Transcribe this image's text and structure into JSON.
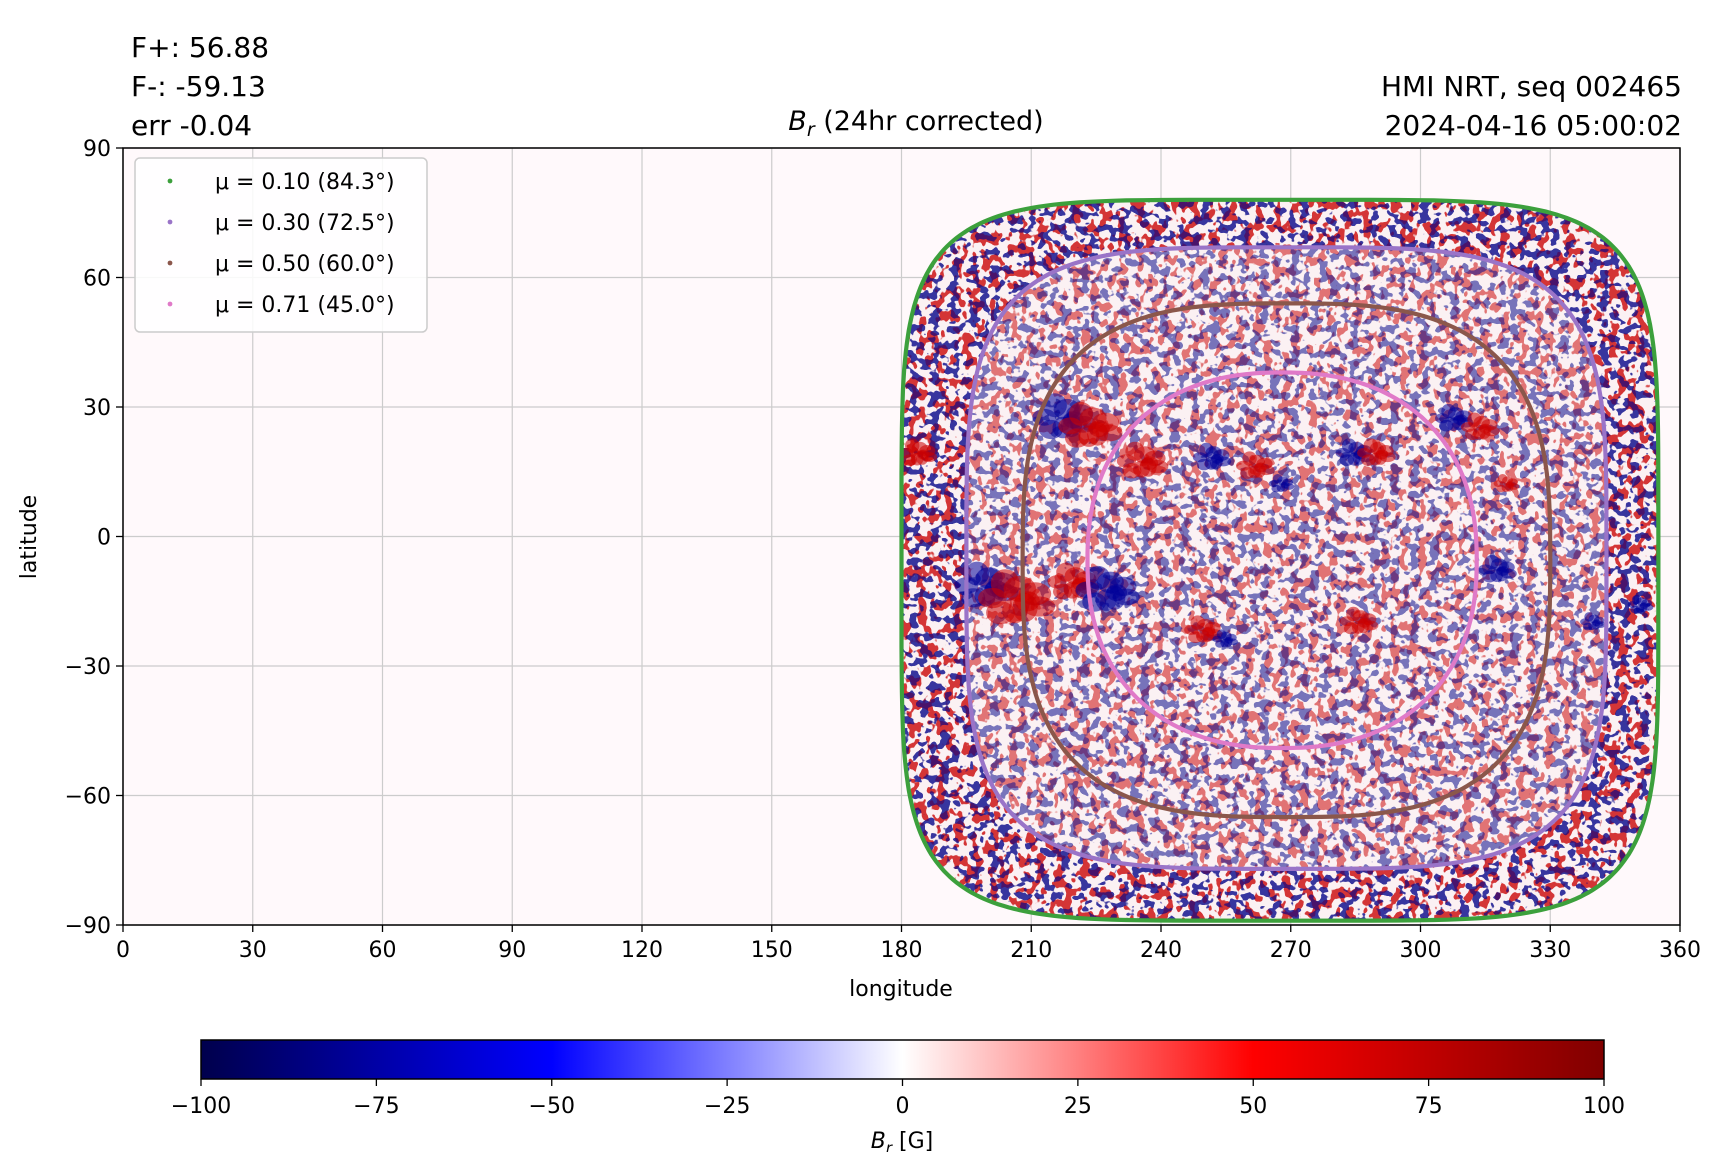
{
  "stats": {
    "f_plus": "F+: 56.88",
    "f_minus": "F-: -59.13",
    "err": "err -0.04"
  },
  "info": {
    "source": "HMI NRT, seq 002465",
    "timestamp": "2024-04-16 05:00:02"
  },
  "colors": {
    "mu010": "#3ca03c",
    "mu030": "#9a74c8",
    "mu050": "#8b574b",
    "mu071": "#e07ac8",
    "positive": "#cc0000",
    "negative": "#000099",
    "grid": "#cccccc"
  },
  "chart_data": [
    {
      "type": "heatmap",
      "title": {
        "symbol": "B",
        "sub": "r",
        "rest": " (24hr corrected)"
      },
      "xlabel": "longitude",
      "ylabel": "latitude",
      "xlim": [
        0,
        360
      ],
      "ylim": [
        -90,
        90
      ],
      "xticks": [
        0,
        30,
        60,
        90,
        120,
        150,
        180,
        210,
        240,
        270,
        300,
        330,
        360
      ],
      "yticks": [
        -90,
        -60,
        -30,
        0,
        30,
        60,
        90
      ],
      "grid": true,
      "legend": "top-left",
      "disk_center": {
        "lon": 268,
        "lat": -6
      },
      "series": [
        {
          "name": "μ = 0.10 (84.3°)",
          "mu": 0.1,
          "color": "#3ca03c",
          "lon_range": [
            180,
            355
          ],
          "lat_range": [
            -89,
            78
          ]
        },
        {
          "name": "μ = 0.30 (72.5°)",
          "mu": 0.3,
          "color": "#9a74c8",
          "lon_range": [
            195,
            343
          ],
          "lat_range": [
            -77,
            67
          ]
        },
        {
          "name": "μ = 0.50 (60.0°)",
          "mu": 0.5,
          "color": "#8b574b",
          "lon_range": [
            208,
            330
          ],
          "lat_range": [
            -65,
            54
          ]
        },
        {
          "name": "μ = 0.71 (45.0°)",
          "mu": 0.71,
          "color": "#e07ac8",
          "lon_range": [
            223,
            313
          ],
          "lat_range": [
            -49,
            38
          ]
        }
      ],
      "features": [
        {
          "lon": 218,
          "lat": 27,
          "polarity": "negative",
          "size": 5
        },
        {
          "lon": 224,
          "lat": 25,
          "polarity": "positive",
          "size": 5
        },
        {
          "lon": 236,
          "lat": 17,
          "polarity": "positive",
          "size": 4
        },
        {
          "lon": 252,
          "lat": 18,
          "polarity": "negative",
          "size": 3
        },
        {
          "lon": 262,
          "lat": 16,
          "polarity": "positive",
          "size": 3
        },
        {
          "lon": 268,
          "lat": 12,
          "polarity": "negative",
          "size": 2
        },
        {
          "lon": 285,
          "lat": 19,
          "polarity": "negative",
          "size": 3
        },
        {
          "lon": 290,
          "lat": 19,
          "polarity": "positive",
          "size": 3
        },
        {
          "lon": 308,
          "lat": 27,
          "polarity": "negative",
          "size": 3
        },
        {
          "lon": 314,
          "lat": 25,
          "polarity": "positive",
          "size": 3
        },
        {
          "lon": 200,
          "lat": -12,
          "polarity": "negative",
          "size": 5
        },
        {
          "lon": 207,
          "lat": -15,
          "polarity": "positive",
          "size": 6
        },
        {
          "lon": 220,
          "lat": -11,
          "polarity": "positive",
          "size": 4
        },
        {
          "lon": 228,
          "lat": -13,
          "polarity": "negative",
          "size": 5
        },
        {
          "lon": 250,
          "lat": -22,
          "polarity": "positive",
          "size": 3
        },
        {
          "lon": 255,
          "lat": -24,
          "polarity": "negative",
          "size": 2
        },
        {
          "lon": 286,
          "lat": -20,
          "polarity": "positive",
          "size": 3
        },
        {
          "lon": 318,
          "lat": -8,
          "polarity": "negative",
          "size": 3
        },
        {
          "lon": 340,
          "lat": -20,
          "polarity": "negative",
          "size": 2
        },
        {
          "lon": 351,
          "lat": -16,
          "polarity": "negative",
          "size": 2
        },
        {
          "lon": 184,
          "lat": 19,
          "polarity": "positive",
          "size": 3
        },
        {
          "lon": 320,
          "lat": 12,
          "polarity": "positive",
          "size": 2
        }
      ]
    },
    {
      "type": "colorbar",
      "label": {
        "symbol": "B",
        "sub": "r",
        "unit": " [G]"
      },
      "range": [
        -100,
        100
      ],
      "ticks": [
        -100,
        -75,
        -50,
        -25,
        0,
        25,
        50,
        75,
        100
      ],
      "tick_labels": [
        "−100",
        "−75",
        "−50",
        "−25",
        "0",
        "25",
        "50",
        "75",
        "100"
      ],
      "colormap": [
        "#00004c",
        "#0000ff",
        "#ffffff",
        "#ff0000",
        "#800000"
      ]
    }
  ]
}
